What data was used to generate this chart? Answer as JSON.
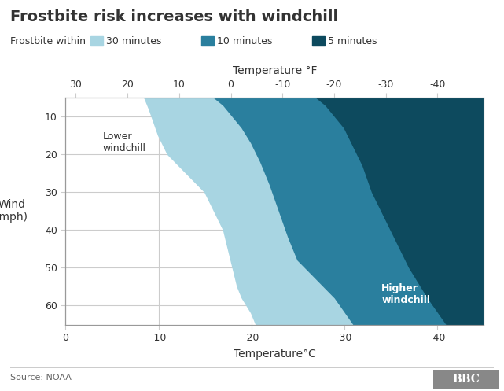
{
  "title": "Frostbite risk increases with windchill",
  "legend_label": "Frostbite within",
  "legend_items": [
    "30 minutes",
    "10 minutes",
    "5 minutes"
  ],
  "colors": {
    "30min": "#a8d5e2",
    "10min": "#2a7f9e",
    "5min": "#0d4a5e",
    "background": "#ffffff",
    "grid": "#cccccc",
    "text": "#333333"
  },
  "temp_c_range": [
    0,
    -45
  ],
  "wind_range": [
    5,
    65
  ],
  "temp_c_ticks": [
    0,
    -10,
    -20,
    -30,
    -40
  ],
  "temp_f_ticks": [
    30,
    20,
    10,
    0,
    -10,
    -20,
    -30,
    -40
  ],
  "wind_ticks": [
    10,
    20,
    30,
    40,
    50,
    60
  ],
  "xlabel_bottom": "Temperature°C",
  "xlabel_top": "Temperature °F",
  "ylabel": "Wind\n(mph)",
  "source": "Source: NOAA",
  "bbc_logo": "BBC",
  "annotation_lower": "Lower\nwindchill",
  "annotation_higher": "Higher\nwindchill",
  "30min_boundary": {
    "temps_c": [
      -8.5,
      -9,
      -10,
      -11,
      -13,
      -15,
      -17,
      -18,
      -18.5,
      -19,
      -19.5,
      -20,
      -20.5,
      -45
    ],
    "winds": [
      5,
      8,
      15,
      20,
      25,
      30,
      40,
      50,
      55,
      58,
      60,
      62,
      65,
      65
    ]
  },
  "10min_boundary": {
    "temps_c": [
      -16,
      -17,
      -18,
      -19,
      -20,
      -21,
      -22,
      -23,
      -24,
      -25,
      -27,
      -29,
      -31,
      -45
    ],
    "winds": [
      5,
      7,
      10,
      13,
      17,
      22,
      28,
      35,
      42,
      48,
      53,
      58,
      65,
      65
    ]
  },
  "5min_boundary": {
    "temps_c": [
      -27,
      -28,
      -29,
      -30,
      -31,
      -32,
      -33,
      -35,
      -37,
      -39,
      -41,
      -45
    ],
    "winds": [
      5,
      7,
      10,
      13,
      18,
      23,
      30,
      40,
      50,
      58,
      65,
      65
    ]
  }
}
